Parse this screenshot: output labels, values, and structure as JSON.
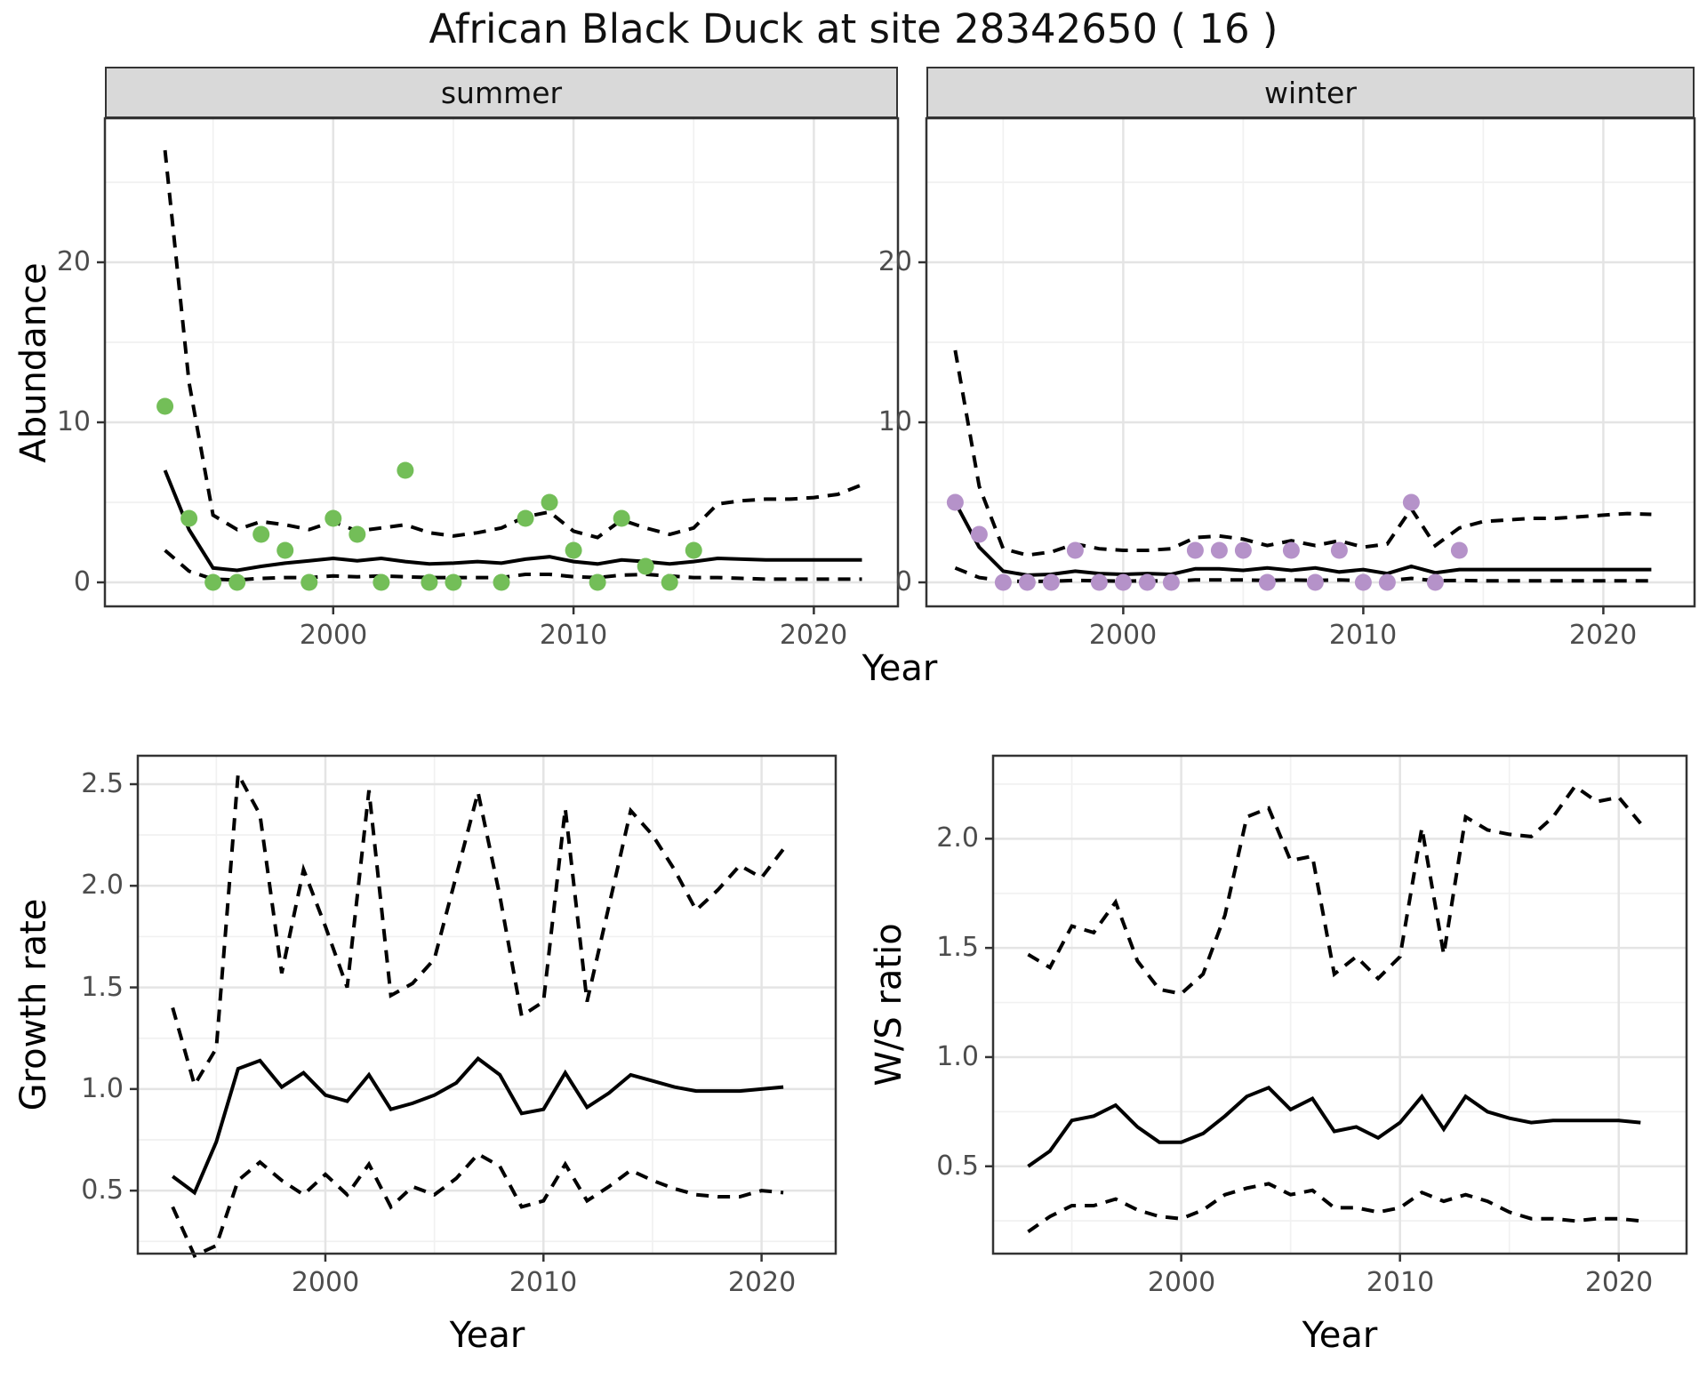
{
  "title": "African Black Duck at site 28342650 ( 16 )",
  "facets": [
    {
      "label": "summer"
    },
    {
      "label": "winter"
    }
  ],
  "axes": {
    "abundance_label": "Abundance",
    "growth_label": "Growth rate",
    "ws_label": "W/S ratio",
    "year_label": "Year"
  },
  "colors": {
    "summer_points": "#73be58",
    "winter_points": "#b592c9",
    "line": "#000000",
    "strip_bg": "#d9d9d9",
    "panel_border": "#333333",
    "grid_major": "#e4e4e4",
    "grid_minor": "#f1f1f1",
    "tick_text": "#4d4d4d"
  },
  "chart_data": [
    {
      "id": "abundance-summer",
      "type": "line",
      "facet": "summer",
      "title": "summer",
      "xlabel": "Year",
      "ylabel": "Abundance",
      "grid": true,
      "legend": "none",
      "xlim": [
        1990.5,
        2023.5
      ],
      "ylim": [
        -1.5,
        29
      ],
      "x_ticks": [
        2000,
        2010,
        2020
      ],
      "x_tick_labels": [
        "2000",
        "2010",
        "2020"
      ],
      "x_minor": [
        1995,
        2005,
        2015
      ],
      "y_ticks": [
        0,
        10,
        20
      ],
      "y_tick_labels": [
        "0",
        "10",
        "20"
      ],
      "y_minor": [
        5,
        15,
        25
      ],
      "series": [
        {
          "name": "upper-credible-interval",
          "style": "dashed",
          "x": [
            1993,
            1994,
            1995,
            1996,
            1997,
            1998,
            1999,
            2000,
            2001,
            2002,
            2003,
            2004,
            2005,
            2006,
            2007,
            2008,
            2009,
            2010,
            2011,
            2012,
            2013,
            2014,
            2015,
            2016,
            2017,
            2018,
            2019,
            2020,
            2021,
            2022
          ],
          "y": [
            27,
            12.5,
            4.2,
            3.3,
            3.8,
            3.6,
            3.3,
            3.8,
            3.2,
            3.4,
            3.6,
            3.1,
            2.9,
            3.1,
            3.4,
            4.1,
            4.4,
            3.2,
            2.8,
            3.9,
            3.4,
            3,
            3.4,
            4.9,
            5.1,
            5.2,
            5.2,
            5.3,
            5.5,
            6.1
          ]
        },
        {
          "name": "median",
          "style": "solid",
          "x": [
            1993,
            1994,
            1995,
            1996,
            1997,
            1998,
            1999,
            2000,
            2001,
            2002,
            2003,
            2004,
            2005,
            2006,
            2007,
            2008,
            2009,
            2010,
            2011,
            2012,
            2013,
            2014,
            2015,
            2016,
            2017,
            2018,
            2019,
            2020,
            2021,
            2022
          ],
          "y": [
            7,
            3.3,
            0.9,
            0.75,
            1,
            1.2,
            1.35,
            1.5,
            1.35,
            1.5,
            1.3,
            1.15,
            1.2,
            1.3,
            1.2,
            1.45,
            1.6,
            1.3,
            1.15,
            1.4,
            1.3,
            1.15,
            1.3,
            1.5,
            1.45,
            1.4,
            1.4,
            1.4,
            1.4,
            1.4
          ]
        },
        {
          "name": "lower-credible-interval",
          "style": "dashed",
          "x": [
            1993,
            1994,
            1995,
            1996,
            1997,
            1998,
            1999,
            2000,
            2001,
            2002,
            2003,
            2004,
            2005,
            2006,
            2007,
            2008,
            2009,
            2010,
            2011,
            2012,
            2013,
            2014,
            2015,
            2016,
            2017,
            2018,
            2019,
            2020,
            2021,
            2022
          ],
          "y": [
            2,
            0.7,
            0.2,
            0.15,
            0.25,
            0.3,
            0.3,
            0.4,
            0.35,
            0.4,
            0.35,
            0.3,
            0.3,
            0.3,
            0.3,
            0.5,
            0.5,
            0.35,
            0.3,
            0.45,
            0.5,
            0.4,
            0.3,
            0.3,
            0.25,
            0.2,
            0.2,
            0.2,
            0.2,
            0.2
          ]
        },
        {
          "name": "observed-counts",
          "style": "points",
          "color": "#73be58",
          "x": [
            1993,
            1994,
            1995,
            1996,
            1997,
            1998,
            1999,
            2000,
            2001,
            2002,
            2003,
            2004,
            2005,
            2007,
            2008,
            2009,
            2010,
            2011,
            2012,
            2013,
            2014,
            2015
          ],
          "y": [
            11,
            4,
            0,
            0,
            3,
            2,
            0,
            4,
            3,
            0,
            7,
            0,
            0,
            0,
            4,
            5,
            2,
            0,
            4,
            1,
            0,
            2
          ]
        }
      ]
    },
    {
      "id": "abundance-winter",
      "type": "line",
      "facet": "winter",
      "title": "winter",
      "xlabel": "Year",
      "ylabel": "Abundance",
      "grid": true,
      "legend": "none",
      "xlim": [
        1991.8,
        2023.8
      ],
      "ylim": [
        -1.5,
        29
      ],
      "x_ticks": [
        2000,
        2010,
        2020
      ],
      "x_tick_labels": [
        "2000",
        "2010",
        "2020"
      ],
      "x_minor": [
        1995,
        2005,
        2015
      ],
      "y_ticks": [
        0,
        10,
        20
      ],
      "y_tick_labels": [
        "0",
        "10",
        "20"
      ],
      "y_minor": [
        5,
        15,
        25
      ],
      "series": [
        {
          "name": "upper-credible-interval",
          "style": "dashed",
          "x": [
            1993,
            1994,
            1995,
            1996,
            1997,
            1998,
            1999,
            2000,
            2001,
            2002,
            2003,
            2004,
            2005,
            2006,
            2007,
            2008,
            2009,
            2010,
            2011,
            2012,
            2013,
            2014,
            2015,
            2016,
            2017,
            2018,
            2019,
            2020,
            2021,
            2022
          ],
          "y": [
            14.5,
            6,
            2.1,
            1.7,
            1.9,
            2.4,
            2.1,
            2,
            2,
            2.1,
            2.8,
            2.9,
            2.7,
            2.3,
            2.6,
            2.3,
            2.6,
            2.2,
            2.4,
            4.6,
            2.3,
            3.4,
            3.8,
            3.9,
            4,
            4,
            4.1,
            4.2,
            4.3,
            4.25
          ]
        },
        {
          "name": "median",
          "style": "solid",
          "x": [
            1993,
            1994,
            1995,
            1996,
            1997,
            1998,
            1999,
            2000,
            2001,
            2002,
            2003,
            2004,
            2005,
            2006,
            2007,
            2008,
            2009,
            2010,
            2011,
            2012,
            2013,
            2014,
            2015,
            2016,
            2017,
            2018,
            2019,
            2020,
            2021,
            2022
          ],
          "y": [
            5,
            2.2,
            0.7,
            0.45,
            0.5,
            0.7,
            0.55,
            0.5,
            0.55,
            0.5,
            0.85,
            0.85,
            0.75,
            0.9,
            0.75,
            0.9,
            0.65,
            0.8,
            0.55,
            1,
            0.6,
            0.8,
            0.8,
            0.8,
            0.8,
            0.8,
            0.8,
            0.8,
            0.8,
            0.8
          ]
        },
        {
          "name": "lower-credible-interval",
          "style": "dashed",
          "x": [
            1993,
            1994,
            1995,
            1996,
            1997,
            1998,
            1999,
            2000,
            2001,
            2002,
            2003,
            2004,
            2005,
            2006,
            2007,
            2008,
            2009,
            2010,
            2011,
            2012,
            2013,
            2014,
            2015,
            2016,
            2017,
            2018,
            2019,
            2020,
            2021,
            2022
          ],
          "y": [
            0.9,
            0.3,
            0.1,
            0.05,
            0.08,
            0.12,
            0.1,
            0.08,
            0.1,
            0.08,
            0.15,
            0.15,
            0.15,
            0.12,
            0.15,
            0.12,
            0.15,
            0.1,
            0.1,
            0.25,
            0.1,
            0.12,
            0.1,
            0.1,
            0.1,
            0.1,
            0.1,
            0.1,
            0.1,
            0.1
          ]
        },
        {
          "name": "observed-counts",
          "style": "points",
          "color": "#b592c9",
          "x": [
            1993,
            1994,
            1995,
            1996,
            1997,
            1998,
            1999,
            2000,
            2001,
            2002,
            2003,
            2004,
            2005,
            2006,
            2007,
            2008,
            2009,
            2010,
            2011,
            2012,
            2013,
            2014
          ],
          "y": [
            5,
            3,
            0,
            0,
            0,
            2,
            0,
            0,
            0,
            0,
            2,
            2,
            2,
            0,
            2,
            0,
            2,
            0,
            0,
            5,
            0,
            2
          ]
        }
      ]
    },
    {
      "id": "growth-rate",
      "type": "line",
      "title": "Growth rate",
      "xlabel": "Year",
      "ylabel": "Growth rate",
      "grid": true,
      "legend": "none",
      "xlim": [
        1991.4,
        2023.4
      ],
      "ylim": [
        0.19,
        2.64
      ],
      "x_ticks": [
        2000,
        2010,
        2020
      ],
      "x_tick_labels": [
        "2000",
        "2010",
        "2020"
      ],
      "x_minor": [
        1995,
        2005,
        2015
      ],
      "y_ticks": [
        0.5,
        1.0,
        1.5,
        2.0,
        2.5
      ],
      "y_tick_labels": [
        "0.5",
        "1.0",
        "1.5",
        "2.0",
        "2.5"
      ],
      "y_minor": [
        0.25,
        0.75,
        1.25,
        1.75,
        2.25
      ],
      "series": [
        {
          "name": "upper-credible-interval",
          "style": "dashed",
          "x": [
            1993,
            1994,
            1995,
            1996,
            1997,
            1998,
            1999,
            2000,
            2001,
            2002,
            2003,
            2004,
            2005,
            2006,
            2007,
            2008,
            2009,
            2010,
            2011,
            2012,
            2013,
            2014,
            2015,
            2016,
            2017,
            2018,
            2019,
            2020,
            2021
          ],
          "y": [
            1.4,
            1.02,
            1.2,
            2.55,
            2.35,
            1.57,
            2.08,
            1.8,
            1.5,
            2.47,
            1.46,
            1.52,
            1.64,
            2.05,
            2.46,
            1.95,
            1.36,
            1.43,
            2.38,
            1.43,
            1.9,
            2.37,
            2.25,
            2.08,
            1.88,
            1.98,
            2.1,
            2.04,
            2.18
          ]
        },
        {
          "name": "median",
          "style": "solid",
          "x": [
            1993,
            1994,
            1995,
            1996,
            1997,
            1998,
            1999,
            2000,
            2001,
            2002,
            2003,
            2004,
            2005,
            2006,
            2007,
            2008,
            2009,
            2010,
            2011,
            2012,
            2013,
            2014,
            2015,
            2016,
            2017,
            2018,
            2019,
            2020,
            2021
          ],
          "y": [
            0.57,
            0.49,
            0.74,
            1.1,
            1.14,
            1.01,
            1.08,
            0.97,
            0.94,
            1.07,
            0.9,
            0.93,
            0.97,
            1.03,
            1.15,
            1.07,
            0.88,
            0.9,
            1.08,
            0.91,
            0.98,
            1.07,
            1.04,
            1.01,
            0.99,
            0.99,
            0.99,
            1,
            1.01
          ]
        },
        {
          "name": "lower-credible-interval",
          "style": "dashed",
          "x": [
            1993,
            1994,
            1995,
            1996,
            1997,
            1998,
            1999,
            2000,
            2001,
            2002,
            2003,
            2004,
            2005,
            2006,
            2007,
            2008,
            2009,
            2010,
            2011,
            2012,
            2013,
            2014,
            2015,
            2016,
            2017,
            2018,
            2019,
            2020,
            2021
          ],
          "y": [
            0.42,
            0.18,
            0.23,
            0.55,
            0.64,
            0.55,
            0.48,
            0.58,
            0.48,
            0.63,
            0.42,
            0.52,
            0.48,
            0.56,
            0.68,
            0.62,
            0.42,
            0.45,
            0.63,
            0.45,
            0.52,
            0.6,
            0.55,
            0.51,
            0.48,
            0.47,
            0.47,
            0.5,
            0.49
          ]
        }
      ]
    },
    {
      "id": "ws-ratio",
      "type": "line",
      "title": "W/S ratio",
      "xlabel": "Year",
      "ylabel": "W/S ratio",
      "grid": true,
      "legend": "none",
      "xlim": [
        1991.4,
        2023.1
      ],
      "ylim": [
        0.1,
        2.38
      ],
      "x_ticks": [
        2000,
        2010,
        2020
      ],
      "x_tick_labels": [
        "2000",
        "2010",
        "2020"
      ],
      "x_minor": [
        1995,
        2005,
        2015
      ],
      "y_ticks": [
        0.5,
        1.0,
        1.5,
        2.0
      ],
      "y_tick_labels": [
        "0.5",
        "1.0",
        "1.5",
        "2.0"
      ],
      "y_minor": [
        0.25,
        0.75,
        1.25,
        1.75,
        2.25
      ],
      "series": [
        {
          "name": "upper-credible-interval",
          "style": "dashed",
          "x": [
            1993,
            1994,
            1995,
            1996,
            1997,
            1998,
            1999,
            2000,
            2001,
            2002,
            2003,
            2004,
            2005,
            2006,
            2007,
            2008,
            2009,
            2010,
            2011,
            2012,
            2013,
            2014,
            2015,
            2016,
            2017,
            2018,
            2019,
            2020,
            2021
          ],
          "y": [
            1.47,
            1.41,
            1.6,
            1.57,
            1.71,
            1.44,
            1.31,
            1.29,
            1.38,
            1.65,
            2.1,
            2.14,
            1.9,
            1.92,
            1.38,
            1.46,
            1.36,
            1.46,
            2.05,
            1.47,
            2.1,
            2.04,
            2.02,
            2.01,
            2.1,
            2.24,
            2.17,
            2.19,
            2.07
          ]
        },
        {
          "name": "median",
          "style": "solid",
          "x": [
            1993,
            1994,
            1995,
            1996,
            1997,
            1998,
            1999,
            2000,
            2001,
            2002,
            2003,
            2004,
            2005,
            2006,
            2007,
            2008,
            2009,
            2010,
            2011,
            2012,
            2013,
            2014,
            2015,
            2016,
            2017,
            2018,
            2019,
            2020,
            2021
          ],
          "y": [
            0.5,
            0.57,
            0.71,
            0.73,
            0.78,
            0.68,
            0.61,
            0.61,
            0.65,
            0.73,
            0.82,
            0.86,
            0.76,
            0.81,
            0.66,
            0.68,
            0.63,
            0.7,
            0.82,
            0.67,
            0.82,
            0.75,
            0.72,
            0.7,
            0.71,
            0.71,
            0.71,
            0.71,
            0.7
          ]
        },
        {
          "name": "lower-credible-interval",
          "style": "dashed",
          "x": [
            1993,
            1994,
            1995,
            1996,
            1997,
            1998,
            1999,
            2000,
            2001,
            2002,
            2003,
            2004,
            2005,
            2006,
            2007,
            2008,
            2009,
            2010,
            2011,
            2012,
            2013,
            2014,
            2015,
            2016,
            2017,
            2018,
            2019,
            2020,
            2021
          ],
          "y": [
            0.2,
            0.27,
            0.32,
            0.32,
            0.35,
            0.3,
            0.27,
            0.26,
            0.3,
            0.37,
            0.4,
            0.42,
            0.37,
            0.39,
            0.31,
            0.31,
            0.29,
            0.31,
            0.38,
            0.34,
            0.37,
            0.34,
            0.29,
            0.26,
            0.26,
            0.25,
            0.26,
            0.26,
            0.25
          ]
        }
      ]
    }
  ]
}
